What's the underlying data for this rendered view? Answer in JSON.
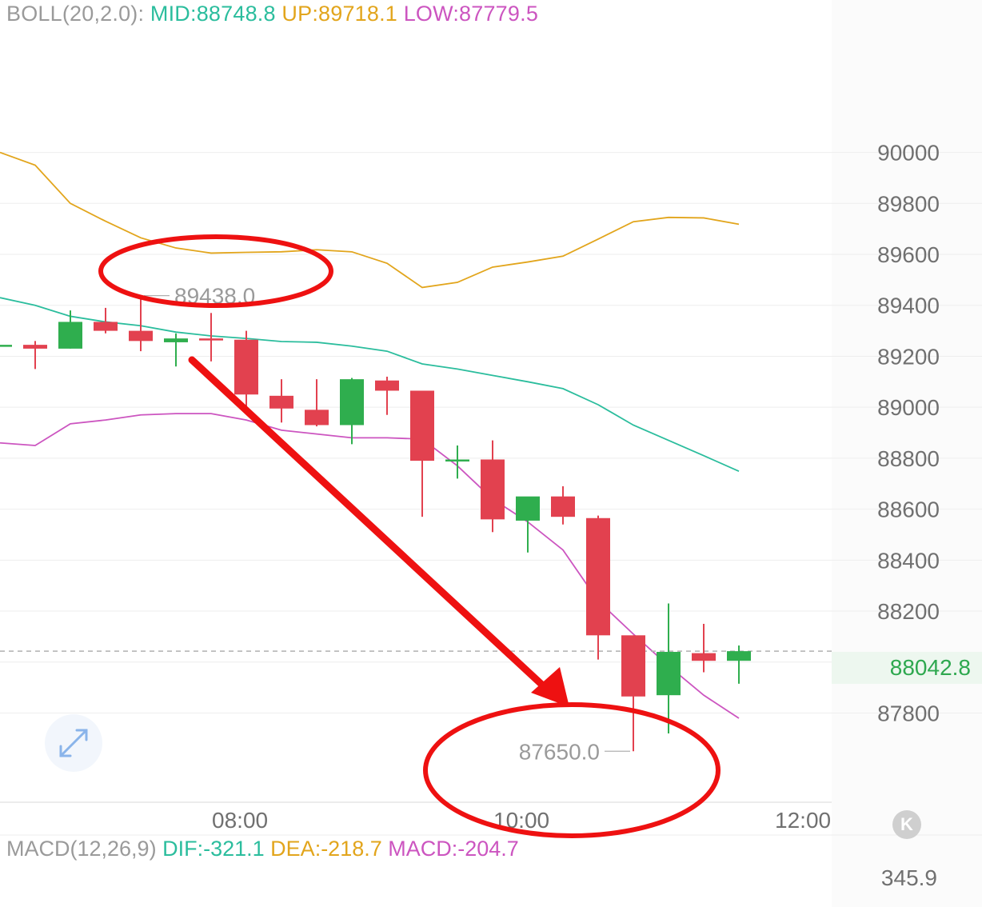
{
  "indicators": {
    "boll": {
      "label": "BOLL(20,2.0):",
      "mid": "MID:88748.8",
      "up": "UP:89718.1",
      "low": "LOW:87779.5"
    },
    "macd": {
      "label": "MACD(12,26,9)",
      "dif": "DIF:-321.1",
      "dea": "DEA:-218.7",
      "macd": "MACD:-204.7"
    }
  },
  "current_price": "88042.8",
  "macd_axis_value": "345.9",
  "k_button_label": "K",
  "colors": {
    "bullish": "#2fae4e",
    "bearish": "#e2414f",
    "mid_band": "#2bbd9d",
    "upper_band": "#e2a51c",
    "lower_band": "#cc55c0",
    "annotation": "#ee1111"
  },
  "icons": {
    "expand": "expand-arrows-icon"
  },
  "chart_data": {
    "type": "candlestick",
    "ylim": [
      87450,
      90300
    ],
    "y_ticks": [
      90000,
      89800,
      89600,
      89400,
      89200,
      89000,
      88800,
      88600,
      88400,
      88200,
      87800
    ],
    "x_ticks": [
      "08:00",
      "10:00",
      "12:00"
    ],
    "candles": [
      {
        "o": 89240,
        "h": 89240,
        "l": 89240,
        "c": 89245
      },
      {
        "o": 89245,
        "h": 89260,
        "l": 89150,
        "c": 89230
      },
      {
        "o": 89230,
        "h": 89380,
        "l": 89230,
        "c": 89335
      },
      {
        "o": 89335,
        "h": 89390,
        "l": 89290,
        "c": 89300
      },
      {
        "o": 89300,
        "h": 89438,
        "l": 89220,
        "c": 89260
      },
      {
        "o": 89255,
        "h": 89290,
        "l": 89160,
        "c": 89270
      },
      {
        "o": 89270,
        "h": 89370,
        "l": 89180,
        "c": 89265
      },
      {
        "o": 89265,
        "h": 89300,
        "l": 89000,
        "c": 89050
      },
      {
        "o": 89045,
        "h": 89110,
        "l": 88940,
        "c": 88995
      },
      {
        "o": 88990,
        "h": 89110,
        "l": 88925,
        "c": 88930
      },
      {
        "o": 88930,
        "h": 89115,
        "l": 88855,
        "c": 89110
      },
      {
        "o": 89105,
        "h": 89120,
        "l": 88970,
        "c": 89065
      },
      {
        "o": 89065,
        "h": 89065,
        "l": 88570,
        "c": 88790
      },
      {
        "o": 88790,
        "h": 88850,
        "l": 88720,
        "c": 88795
      },
      {
        "o": 88795,
        "h": 88870,
        "l": 88510,
        "c": 88560
      },
      {
        "o": 88555,
        "h": 88640,
        "l": 88430,
        "c": 88650
      },
      {
        "o": 88650,
        "h": 88690,
        "l": 88540,
        "c": 88570
      },
      {
        "o": 88565,
        "h": 88575,
        "l": 88010,
        "c": 88105
      },
      {
        "o": 88105,
        "h": 88105,
        "l": 87650,
        "c": 87865
      },
      {
        "o": 87870,
        "h": 88230,
        "l": 87720,
        "c": 88040
      },
      {
        "o": 88035,
        "h": 88150,
        "l": 87960,
        "c": 88005
      },
      {
        "o": 88005,
        "h": 88065,
        "l": 87915,
        "c": 88042.8
      }
    ],
    "upper_band": [
      90000,
      89950,
      89800,
      89730,
      89665,
      89625,
      89605,
      89608,
      89610,
      89618,
      89610,
      89565,
      89470,
      89490,
      89550,
      89570,
      89593,
      89660,
      89728,
      89745,
      89743,
      89718.1
    ],
    "mid_band": [
      89430,
      89400,
      89357,
      89335,
      89320,
      89295,
      89280,
      89270,
      89258,
      89255,
      89240,
      89220,
      89170,
      89150,
      89125,
      89100,
      89073,
      89010,
      88930,
      88870,
      88810,
      88748.8
    ],
    "lower_band": [
      88860,
      88850,
      88935,
      88950,
      88970,
      88975,
      88975,
      88950,
      88910,
      88895,
      88880,
      88880,
      88875,
      88770,
      88640,
      88550,
      88440,
      88240,
      88110,
      87985,
      87870,
      87779.5
    ],
    "annotations": [
      {
        "label": "89438.0",
        "value": 89438.0,
        "marker": "high"
      },
      {
        "label": "87650.0",
        "value": 87650.0,
        "marker": "low"
      }
    ]
  }
}
